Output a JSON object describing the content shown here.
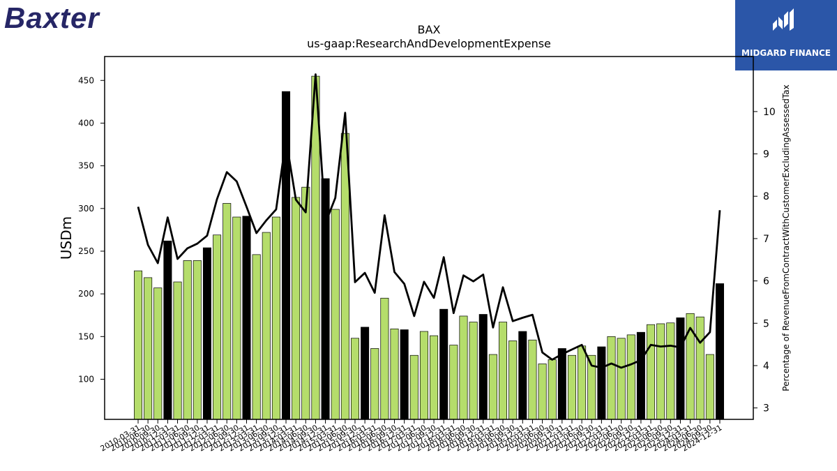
{
  "logos": {
    "left_text": "Baxter",
    "right_text": "MIDGARD FINANCE"
  },
  "colors": {
    "bar_green": "#b5dd6b",
    "bar_black": "#000000",
    "line": "#000000",
    "logo_left": "#262666",
    "logo_right_bg": "#2b56a8"
  },
  "chart_data": {
    "type": "bar",
    "title": "BAX",
    "subtitle": "us-gaap:ResearchAndDevelopmentExpense",
    "ylabel": "USDm",
    "y2label": "Percentage of RevenueFromContractWithCustomerExcludingAssessedTax",
    "ylim": [
      53,
      478
    ],
    "y2lim": [
      2.73,
      11.3
    ],
    "yticks": [
      100,
      150,
      200,
      250,
      300,
      350,
      400,
      450
    ],
    "y2ticks": [
      3,
      4,
      5,
      6,
      7,
      8,
      9,
      10
    ],
    "categories": [
      "2010-03-31",
      "2010-06-30",
      "2010-09-30",
      "2010-12-31",
      "2011-03-31",
      "2011-06-30",
      "2011-09-30",
      "2011-12-31",
      "2012-03-31",
      "2012-06-30",
      "2012-09-30",
      "2012-12-31",
      "2013-03-31",
      "2013-06-30",
      "2013-09-30",
      "2013-12-31",
      "2014-03-31",
      "2014-06-30",
      "2014-09-30",
      "2014-12-31",
      "2015-03-31",
      "2015-06-30",
      "2015-09-30",
      "2015-12-31",
      "2016-03-31",
      "2016-06-30",
      "2016-09-30",
      "2016-12-31",
      "2017-03-31",
      "2017-06-30",
      "2017-09-30",
      "2017-12-31",
      "2018-03-31",
      "2018-06-30",
      "2018-09-30",
      "2018-12-31",
      "2019-03-31",
      "2019-06-30",
      "2019-09-30",
      "2019-12-31",
      "2020-03-31",
      "2020-06-30",
      "2020-09-30",
      "2020-12-31",
      "2021-03-31",
      "2021-06-30",
      "2021-09-30",
      "2021-12-31",
      "2022-03-31",
      "2022-06-30",
      "2022-09-30",
      "2022-12-31",
      "2023-03-31",
      "2023-06-30",
      "2023-09-30",
      "2023-12-31",
      "2024-03-31",
      "2024-06-30",
      "2024-09-30",
      "2024-12-31"
    ],
    "tick_labels_shown": [
      "2010-03-31",
      "2010-06-30",
      "2010-09-30",
      "2010-12-31",
      "2011-03-31",
      "2011-06-30",
      "2011-09-30",
      "2011-12-31",
      "2012-03-31",
      "2012-06-30",
      "2012-09-30",
      "2012-12-31",
      "2013-03-31",
      "2013-06-30",
      "2013-09-30",
      "2013-12-31",
      "2014-03-31",
      "2014-06-30",
      "2014-09-30",
      "2014-12-31",
      "2015-03-31",
      "2015-06-30",
      "2015-09-30",
      "2015-12-31",
      "2016-03-31",
      "2016-06-30",
      "2016-09-30",
      "2016-12-31",
      "2017-03-31",
      "2017-06-30",
      "2017-09-30",
      "2017-12-31",
      "2018-03-31",
      "2018-06-30",
      "2018-09-30",
      "2018-12-31",
      "2019-03-31",
      "2019-06-30",
      "2019-09-30",
      "2019-12-31",
      "2020-03-31",
      "2020-06-30",
      "2020-09-30",
      "2020-12-31",
      "2021-03-31",
      "2021-06-30",
      "2021-09-30",
      "2021-12-31",
      "2022-03-31",
      "2022-06-30",
      "2022-09-30",
      "2022-12-31",
      "2023-03-31",
      "2023-06-30",
      "2023-09-30",
      "2023-12-31",
      "2024-03-31",
      "2024-06-30",
      "2024-09-30",
      "2024-12-31"
    ],
    "series": [
      {
        "type": "bar",
        "axis": "left",
        "values": [
          227,
          219,
          207,
          262,
          214,
          239,
          239,
          254,
          269,
          306,
          290,
          291,
          246,
          272,
          290,
          437,
          313,
          325,
          455,
          335,
          299,
          388,
          148,
          161,
          136,
          195,
          159,
          158,
          128,
          156,
          151,
          182,
          140,
          174,
          167,
          176,
          129,
          167,
          145,
          156,
          146,
          118,
          123,
          136,
          128,
          139,
          128,
          138,
          150,
          148,
          152,
          155,
          164,
          165,
          166,
          172,
          177,
          173,
          129,
          212
        ],
        "black_bar_indices": [
          3,
          7,
          11,
          15,
          19,
          23,
          27,
          31,
          35,
          39,
          43,
          47,
          51,
          55,
          59
        ]
      },
      {
        "type": "line",
        "axis": "right",
        "values": [
          7.75,
          6.85,
          6.42,
          7.5,
          6.52,
          6.77,
          6.88,
          7.07,
          7.93,
          8.57,
          8.35,
          7.75,
          7.13,
          7.43,
          7.69,
          9.35,
          7.92,
          7.62,
          10.88,
          7.37,
          7.96,
          9.97,
          5.97,
          6.19,
          5.72,
          7.55,
          6.21,
          5.93,
          5.17,
          5.98,
          5.6,
          6.56,
          5.24,
          6.13,
          5.99,
          6.15,
          4.9,
          5.85,
          5.05,
          5.13,
          5.2,
          4.31,
          4.14,
          4.27,
          4.38,
          4.49,
          4.0,
          3.95,
          4.05,
          3.95,
          4.03,
          4.13,
          4.49,
          4.45,
          4.47,
          4.43,
          4.89,
          4.54,
          4.79,
          7.67
        ]
      }
    ]
  }
}
